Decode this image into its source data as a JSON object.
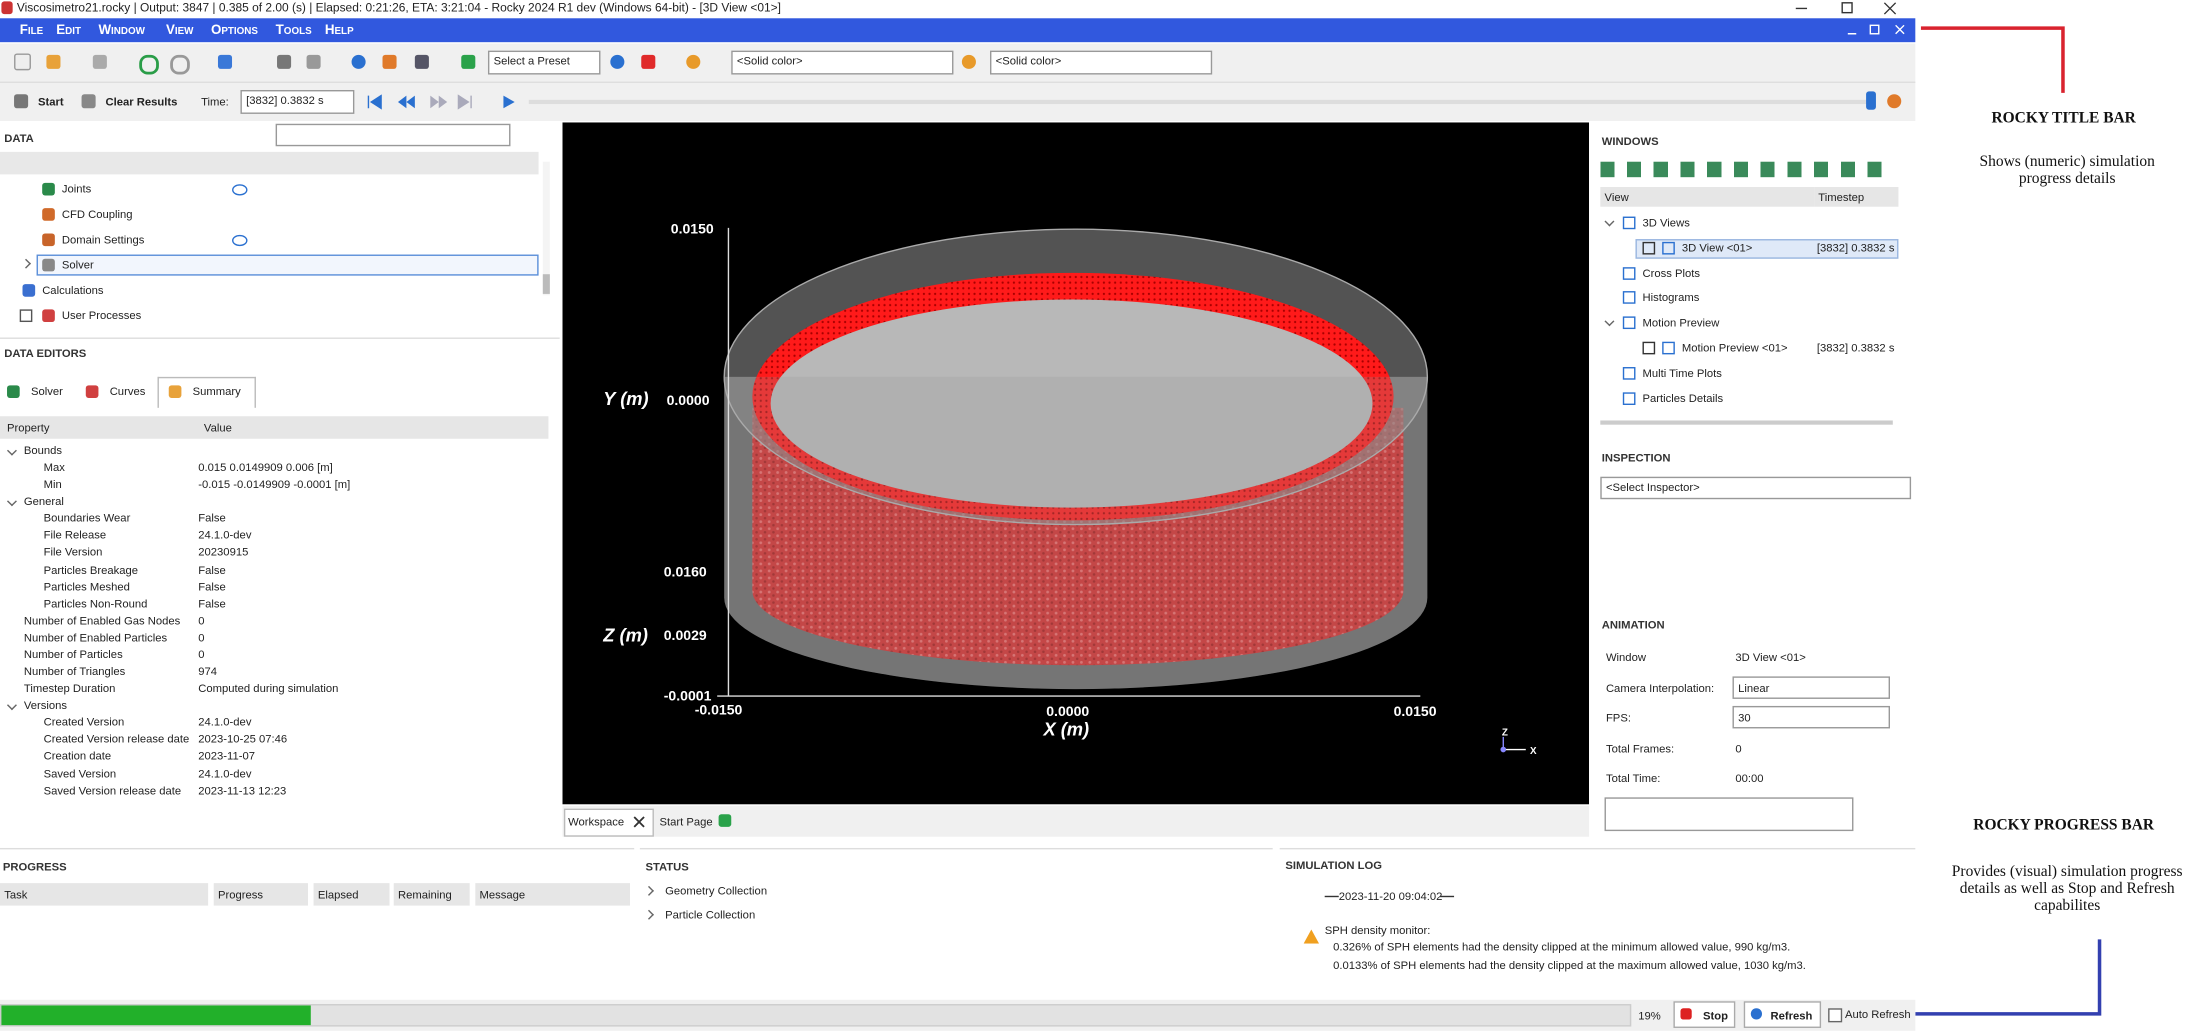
{
  "title_bar": "Viscosimetro21.rocky | Output: 3847 | 0.385 of 2.00 (s) | Elapsed: 0:21:26, ETA: 3:21:04 - Rocky 2024 R1 dev (Windows 64-bit) - [3D View <01>]",
  "menu": [
    "File",
    "Edit",
    "Window",
    "View",
    "Options",
    "Tools",
    "Help"
  ],
  "toolbar": {
    "preset": "Select a Preset",
    "color_mode_1": "<Solid color>",
    "color_mode_2": "<Solid color>",
    "start": "Start",
    "clear": "Clear Results",
    "time_label": "Time:",
    "time_value": "[3832] 0.3832 s"
  },
  "data_panel": {
    "title": "DATA",
    "items": [
      "Joints",
      "CFD Coupling",
      "Domain Settings",
      "Solver",
      "Calculations",
      "User Processes"
    ]
  },
  "data_editors": {
    "title": "DATA EDITORS",
    "tabs": [
      "Solver",
      "Curves",
      "Summary"
    ],
    "columns": [
      "Property",
      "Value"
    ],
    "rows": [
      {
        "label": "Bounds",
        "children": [
          {
            "label": "Max",
            "value": "0.015 0.0149909 0.006 [m]"
          },
          {
            "label": "Min",
            "value": "-0.015 -0.0149909 -0.0001 [m]"
          }
        ]
      },
      {
        "label": "General",
        "children": [
          {
            "label": "Boundaries Wear",
            "value": "False"
          },
          {
            "label": "File Release",
            "value": "24.1.0-dev"
          },
          {
            "label": "File Version",
            "value": "20230915"
          },
          {
            "label": "Particles Breakage",
            "value": "False"
          },
          {
            "label": "Particles Meshed",
            "value": "False"
          },
          {
            "label": "Particles Non-Round",
            "value": "False"
          }
        ]
      },
      {
        "label": "Number of Enabled Gas Nodes",
        "value": "0"
      },
      {
        "label": "Number of Enabled Particles",
        "value": "0"
      },
      {
        "label": "Number of Particles",
        "value": "0"
      },
      {
        "label": "Number of Triangles",
        "value": "974"
      },
      {
        "label": "Timestep Duration",
        "value": "Computed during simulation"
      },
      {
        "label": "Versions",
        "children": [
          {
            "label": "Created Version",
            "value": "24.1.0-dev"
          },
          {
            "label": "Created Version release date",
            "value": "2023-10-25 07:46"
          },
          {
            "label": "Creation date",
            "value": "2023-11-07"
          },
          {
            "label": "Saved Version",
            "value": "24.1.0-dev"
          },
          {
            "label": "Saved Version release date",
            "value": "2023-11-13 12:23"
          }
        ]
      }
    ]
  },
  "viewport": {
    "y_title": "Y (m)",
    "z_title": "Z (m)",
    "x_title": "X (m)",
    "y_top": "0.0150",
    "y_mid": "0.0000",
    "y_low": "0.0160",
    "z_mid": "0.0029",
    "z_low": "-0.0001",
    "x_left": "-0.0150",
    "x_mid": "0.0000",
    "x_right": "0.0150",
    "triad_z": "Z",
    "triad_x": "X"
  },
  "workspace_tabs": [
    "Workspace",
    "Start Page"
  ],
  "windows": {
    "title": "WINDOWS",
    "columns": [
      "View",
      "Timestep"
    ],
    "items": [
      {
        "label": "3D Views",
        "children": [
          {
            "label": "3D View <01>",
            "timestep": "[3832] 0.3832 s"
          }
        ]
      },
      {
        "label": "Cross Plots"
      },
      {
        "label": "Histograms"
      },
      {
        "label": "Motion Preview",
        "children": [
          {
            "label": "Motion Preview <01>",
            "timestep": "[3832] 0.3832 s"
          }
        ]
      },
      {
        "label": "Multi Time Plots"
      },
      {
        "label": "Particles Details"
      }
    ]
  },
  "inspection": {
    "title": "INSPECTION",
    "select": "<Select Inspector>"
  },
  "animation": {
    "title": "ANIMATION",
    "rows": [
      [
        "Window",
        "3D View <01>"
      ],
      [
        "Camera Interpolation:",
        "Linear"
      ],
      [
        "FPS:",
        "30"
      ],
      [
        "Total Frames:",
        "0"
      ],
      [
        "Total Time:",
        "00:00"
      ]
    ]
  },
  "progress_panel": {
    "title": "PROGRESS",
    "columns": [
      "Task",
      "Progress",
      "Elapsed",
      "Remaining",
      "Message"
    ]
  },
  "status_panel": {
    "title": "STATUS",
    "items": [
      "Geometry Collection",
      "Particle Collection"
    ]
  },
  "simulation_log": {
    "title": "SIMULATION LOG",
    "date": "2023-11-20 09:04:02",
    "heading": "SPH density monitor:",
    "lines": [
      "0.326% of SPH elements had the density clipped at the minimum allowed value, 990 kg/m3.",
      "0.0133% of SPH elements had the density clipped at the maximum allowed value, 1030 kg/m3."
    ]
  },
  "status_bar": {
    "progress": {
      "value": 19,
      "label": "19%"
    },
    "stop": "Stop",
    "refresh": "Refresh",
    "auto_refresh": "Auto Refresh"
  },
  "annotations": {
    "title_bar_heading": "ROCKY TITLE BAR",
    "title_bar_text": "Shows (numeric) simulation progress details",
    "progress_bar_heading": "ROCKY PROGRESS BAR",
    "progress_bar_text": "Provides (visual) simulation progress details as well as Stop and Refresh capabilites"
  }
}
